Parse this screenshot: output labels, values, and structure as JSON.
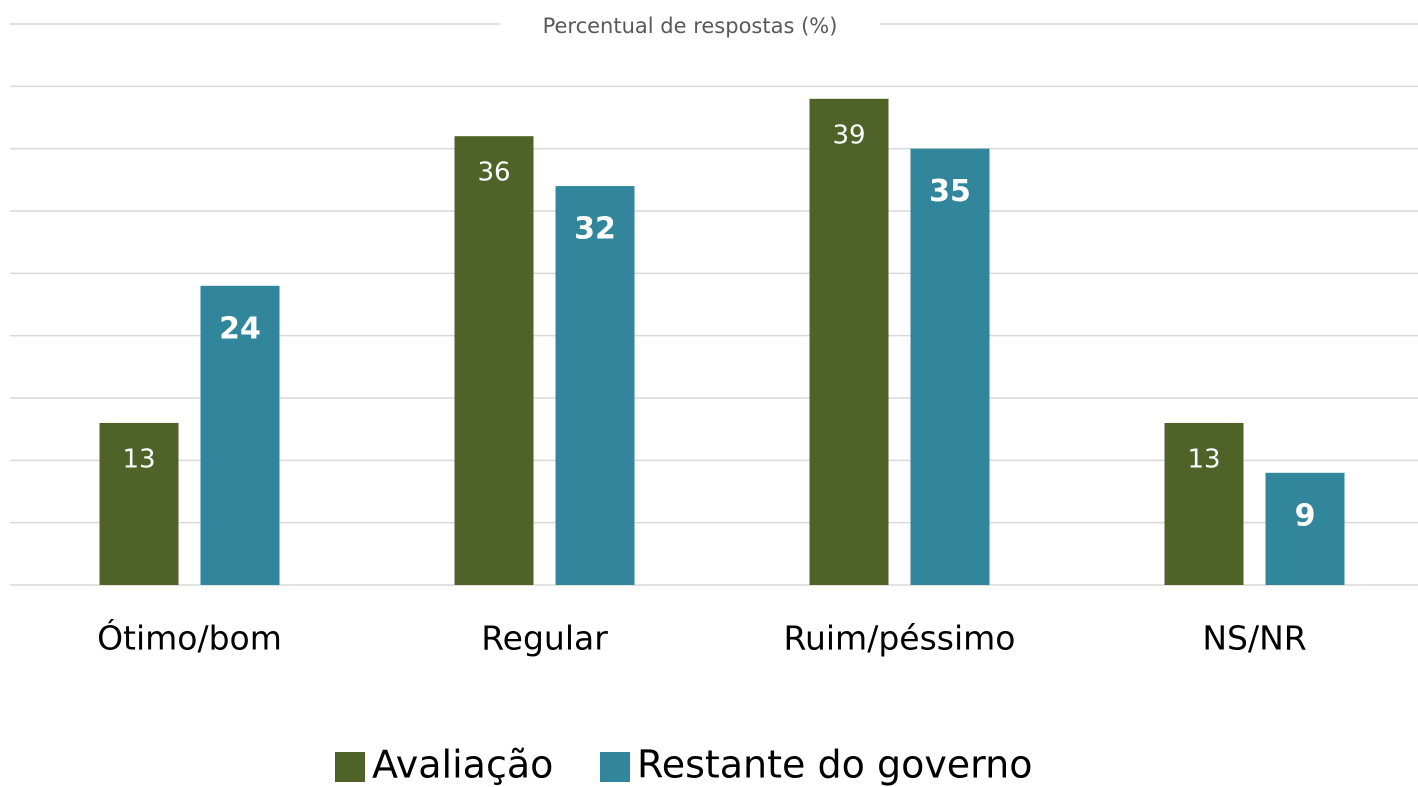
{
  "chart_data": {
    "type": "bar",
    "title": "Percentual de respostas (%)",
    "categories": [
      "Ótimo/bom",
      "Regular",
      "Ruim/péssimo",
      "NS/NR"
    ],
    "series": [
      {
        "name": "Avaliação",
        "color": "#4f6228",
        "values": [
          13,
          36,
          39,
          13
        ]
      },
      {
        "name": "Restante do governo",
        "color": "#31869b",
        "values": [
          24,
          32,
          35,
          9
        ]
      }
    ],
    "ylim": [
      0,
      45
    ],
    "yticks": [
      0,
      5,
      10,
      15,
      20,
      25,
      30,
      35,
      40,
      45
    ],
    "grid": true,
    "legend": "bottom"
  }
}
